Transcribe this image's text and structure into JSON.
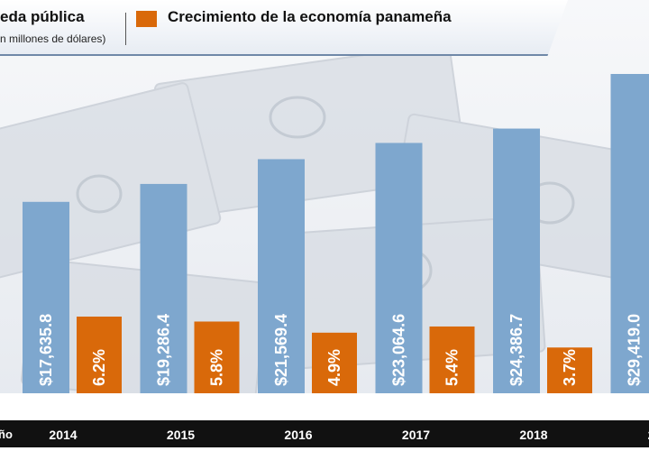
{
  "legend": {
    "debt_title": "eda pública",
    "debt_subtitle": "n millones de dólares)",
    "growth_title": "Crecimiento de la economía panameña"
  },
  "colors": {
    "debt": "#7ea7ce",
    "growth": "#d9690a"
  },
  "footer": {
    "axis_label": "ño"
  },
  "chart_data": {
    "type": "bar",
    "categories": [
      "2014",
      "2015",
      "2016",
      "2017",
      "2018",
      "2"
    ],
    "series": [
      {
        "name": "eda pública",
        "values": [
          17635.8,
          19286.4,
          21569.4,
          23064.6,
          24386.7,
          29419.0
        ],
        "labels": [
          "$17,635.8",
          "$19,286.4",
          "$21,569.4",
          "$23,064.6",
          "$24,386.7",
          "$29,419.0"
        ]
      },
      {
        "name": "Crecimiento de la economía panameña",
        "values": [
          6.2,
          5.8,
          4.9,
          5.4,
          3.7,
          null
        ],
        "labels": [
          "6.2%",
          "5.8%",
          "4.9%",
          "5.4%",
          "3.7%",
          ""
        ]
      }
    ],
    "xlabel": "ño",
    "ylabel": "",
    "ylim": [
      0,
      29419.0
    ],
    "growth_ylim": [
      0,
      6.2
    ],
    "grid": false
  }
}
